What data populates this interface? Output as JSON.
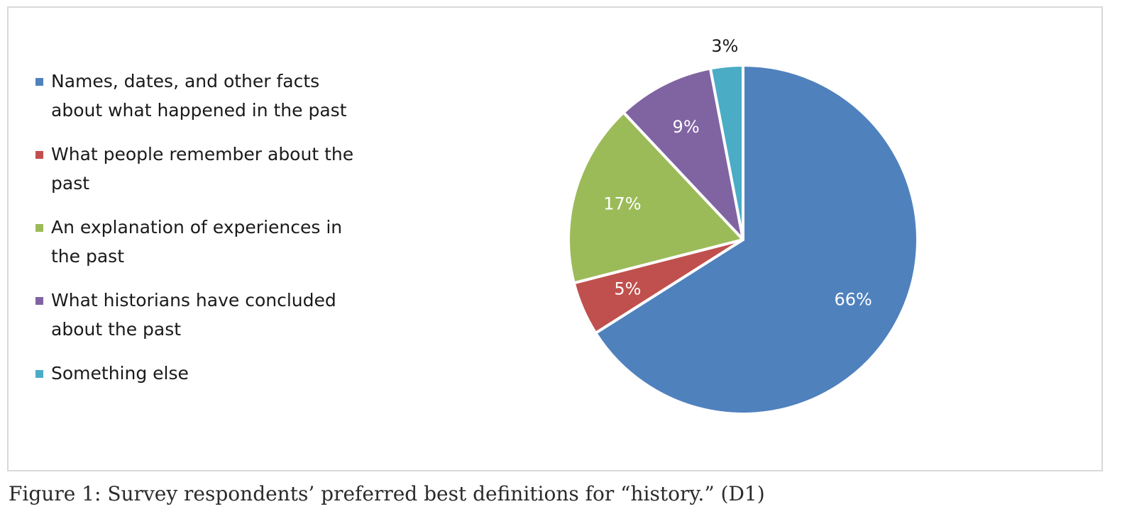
{
  "chart_data": {
    "type": "pie",
    "title": "",
    "legend_position": "left",
    "categories": [
      "Names, dates, and other facts about what happened in the past",
      "What people remember about the past",
      "An explanation of experiences in the past",
      "What historians have concluded about the past",
      "Something else"
    ],
    "legend_lines": [
      [
        "Names, dates, and other facts",
        "about what happened in the past"
      ],
      [
        "What people remember about the",
        "past"
      ],
      [
        "An explanation of experiences in",
        "the past"
      ],
      [
        "What historians have concluded",
        "about the past"
      ],
      [
        "Something else"
      ]
    ],
    "values": [
      66,
      5,
      17,
      9,
      3
    ],
    "data_labels": [
      "66%",
      "5%",
      "17%",
      "9%",
      "3%"
    ],
    "colors": [
      "#4f81bd",
      "#c0504d",
      "#9bbb59",
      "#8064a2",
      "#4bacc6"
    ],
    "label_colors": [
      "#ffffff",
      "#ffffff",
      "#ffffff",
      "#ffffff",
      "#1a1a1a"
    ]
  },
  "caption": "Figure 1: Survey respondents’ preferred best definitions for “history.” (D1)"
}
